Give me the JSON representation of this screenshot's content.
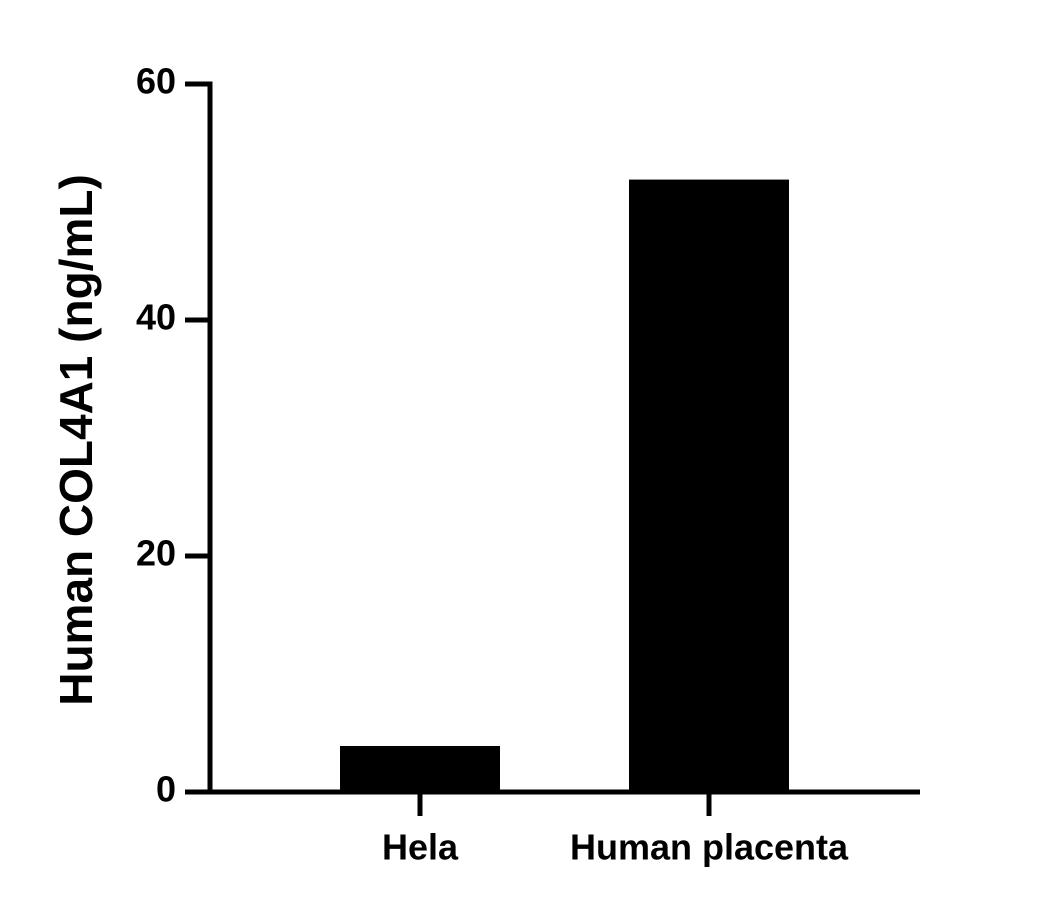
{
  "chart_data": {
    "type": "bar",
    "y_label": "Human COL4A1 (ng/mL)",
    "categories": [
      "Hela",
      "Human placenta"
    ],
    "values": [
      3.9,
      51.9
    ],
    "color": "#000000",
    "ylim": [
      0,
      60
    ],
    "yticks": [
      0,
      20,
      40,
      60
    ],
    "grid": false
  }
}
